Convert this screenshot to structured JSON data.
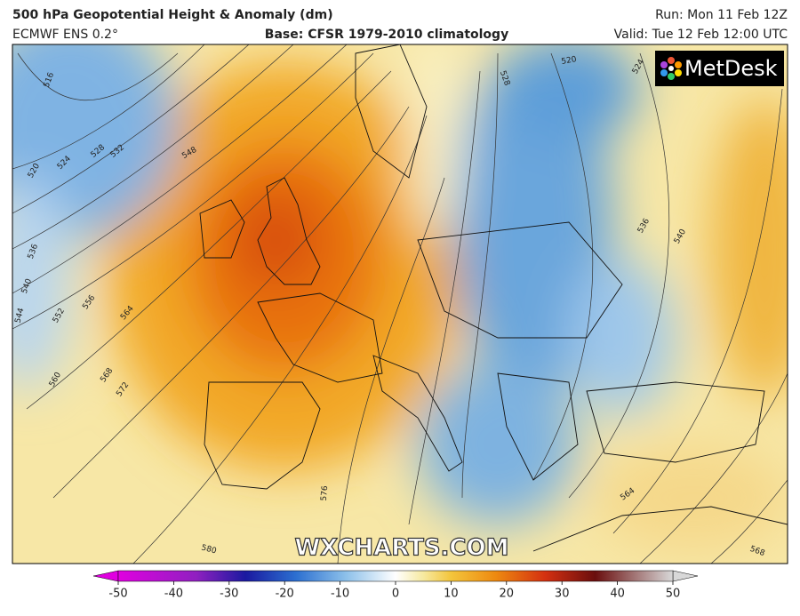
{
  "header": {
    "title": "500 hPa Geopotential Height & Anomaly (dm)",
    "model": "ECMWF ENS 0.2°",
    "base": "Base: CFSR 1979-2010 climatology",
    "run": "Run: Mon 11 Feb 12Z",
    "valid": "Valid: Tue 12 Feb 12:00 UTC"
  },
  "logo": "MetDesk",
  "watermark": "WXCHARTS.COM",
  "contour_labels": [
    516,
    520,
    524,
    528,
    532,
    536,
    540,
    544,
    548,
    552,
    556,
    560,
    564,
    568,
    572,
    576,
    580,
    528,
    520,
    524,
    536,
    540,
    564,
    568
  ],
  "colorbar": {
    "ticks": [
      -50,
      -40,
      -30,
      -20,
      -10,
      0,
      10,
      20,
      30,
      40,
      50
    ]
  }
}
